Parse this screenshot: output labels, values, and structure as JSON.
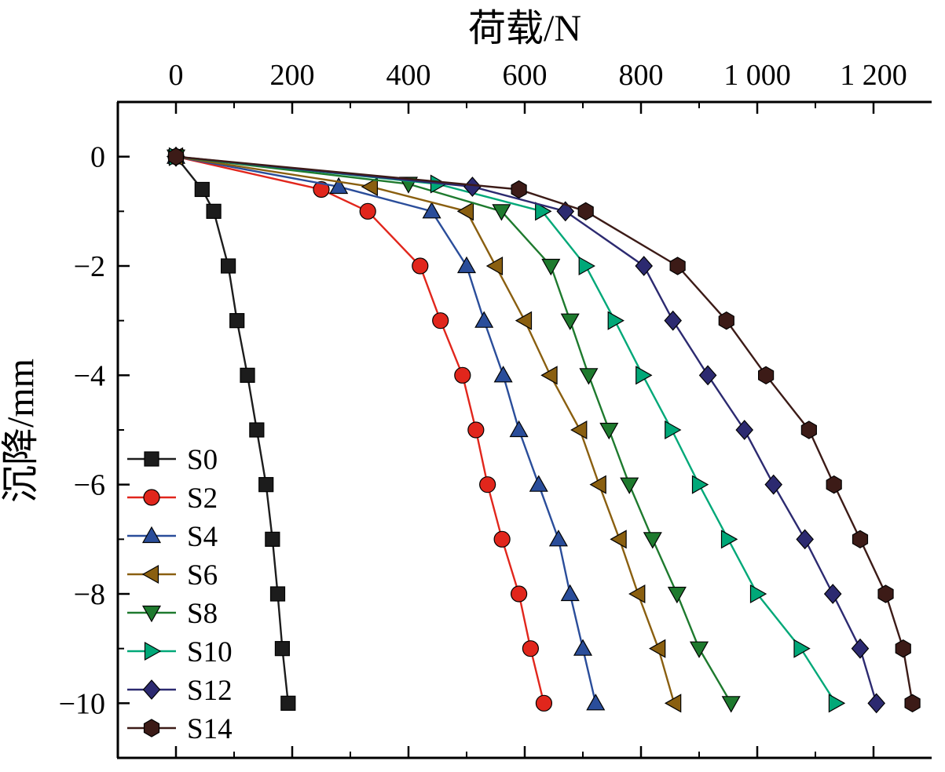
{
  "chart_data": {
    "type": "line",
    "title": "荷载/N",
    "ylabel": "沉降/mm",
    "xlabel": "",
    "xlim": [
      -100,
      1300
    ],
    "ylim": [
      -11,
      1
    ],
    "grid": false,
    "legend_position": "lower-left",
    "x_major_ticks": [
      0,
      200,
      400,
      600,
      800,
      1000,
      1200
    ],
    "x_major_labels": [
      "0",
      "200",
      "400",
      "600",
      "800",
      "1 000",
      "1 200"
    ],
    "x_minor_ticks": [
      100,
      300,
      500,
      700,
      900,
      1100
    ],
    "y_major_ticks": [
      0,
      -2,
      -4,
      -6,
      -8,
      -10
    ],
    "y_major_labels": [
      "0",
      "−2",
      "−4",
      "−6",
      "−8",
      "−10"
    ],
    "y_minor_ticks": [
      -1,
      -3,
      -5,
      -7,
      -9,
      -11
    ],
    "series": [
      {
        "name": "S0",
        "color": "#1c1c1c",
        "marker": "square",
        "points": [
          [
            0,
            0
          ],
          [
            45,
            -0.6
          ],
          [
            65,
            -1
          ],
          [
            90,
            -2
          ],
          [
            105,
            -3
          ],
          [
            123,
            -4
          ],
          [
            139,
            -5
          ],
          [
            155,
            -6
          ],
          [
            166,
            -7
          ],
          [
            175,
            -8
          ],
          [
            183,
            -9
          ],
          [
            193,
            -10
          ]
        ]
      },
      {
        "name": "S2",
        "color": "#e1261c",
        "marker": "circle",
        "points": [
          [
            0,
            0
          ],
          [
            250,
            -0.6
          ],
          [
            330,
            -1
          ],
          [
            420,
            -2
          ],
          [
            455,
            -3
          ],
          [
            493,
            -4
          ],
          [
            516,
            -5
          ],
          [
            536,
            -6
          ],
          [
            561,
            -7
          ],
          [
            590,
            -8
          ],
          [
            610,
            -9
          ],
          [
            633,
            -10
          ]
        ]
      },
      {
        "name": "S4",
        "color": "#2a4d9a",
        "marker": "triangle-up",
        "points": [
          [
            0,
            0
          ],
          [
            280,
            -0.55
          ],
          [
            440,
            -1
          ],
          [
            500,
            -2
          ],
          [
            530,
            -3
          ],
          [
            563,
            -4
          ],
          [
            590,
            -5
          ],
          [
            624,
            -6
          ],
          [
            658,
            -7
          ],
          [
            678,
            -8
          ],
          [
            700,
            -9
          ],
          [
            722,
            -10
          ]
        ]
      },
      {
        "name": "S6",
        "color": "#8a5f10",
        "marker": "triangle-left",
        "points": [
          [
            0,
            0
          ],
          [
            335,
            -0.55
          ],
          [
            500,
            -1
          ],
          [
            550,
            -2
          ],
          [
            600,
            -3
          ],
          [
            644,
            -4
          ],
          [
            695,
            -5
          ],
          [
            728,
            -6
          ],
          [
            763,
            -7
          ],
          [
            795,
            -8
          ],
          [
            830,
            -9
          ],
          [
            857,
            -10
          ]
        ]
      },
      {
        "name": "S8",
        "color": "#1e7a2e",
        "marker": "triangle-down",
        "points": [
          [
            0,
            0
          ],
          [
            400,
            -0.5
          ],
          [
            560,
            -1
          ],
          [
            645,
            -2
          ],
          [
            678,
            -3
          ],
          [
            710,
            -4
          ],
          [
            745,
            -5
          ],
          [
            780,
            -6
          ],
          [
            820,
            -7
          ],
          [
            862,
            -8
          ],
          [
            900,
            -9
          ],
          [
            955,
            -10
          ]
        ]
      },
      {
        "name": "S10",
        "color": "#00a878",
        "marker": "triangle-right",
        "points": [
          [
            0,
            0
          ],
          [
            450,
            -0.5
          ],
          [
            630,
            -1
          ],
          [
            705,
            -2
          ],
          [
            755,
            -3
          ],
          [
            803,
            -4
          ],
          [
            853,
            -5
          ],
          [
            900,
            -6
          ],
          [
            950,
            -7
          ],
          [
            1000,
            -8
          ],
          [
            1075,
            -9
          ],
          [
            1135,
            -10
          ]
        ]
      },
      {
        "name": "S12",
        "color": "#2c2a70",
        "marker": "diamond",
        "points": [
          [
            0,
            0
          ],
          [
            510,
            -0.55
          ],
          [
            670,
            -1
          ],
          [
            805,
            -2
          ],
          [
            855,
            -3
          ],
          [
            915,
            -4
          ],
          [
            978,
            -5
          ],
          [
            1028,
            -6
          ],
          [
            1082,
            -7
          ],
          [
            1130,
            -8
          ],
          [
            1177,
            -9
          ],
          [
            1205,
            -10
          ]
        ]
      },
      {
        "name": "S14",
        "color": "#3c1b17",
        "marker": "hexagon",
        "points": [
          [
            0,
            0
          ],
          [
            590,
            -0.6
          ],
          [
            705,
            -1
          ],
          [
            863,
            -2
          ],
          [
            947,
            -3
          ],
          [
            1015,
            -4
          ],
          [
            1089,
            -5
          ],
          [
            1132,
            -6
          ],
          [
            1177,
            -7
          ],
          [
            1221,
            -8
          ],
          [
            1251,
            -9
          ],
          [
            1267,
            -10
          ]
        ]
      }
    ]
  }
}
